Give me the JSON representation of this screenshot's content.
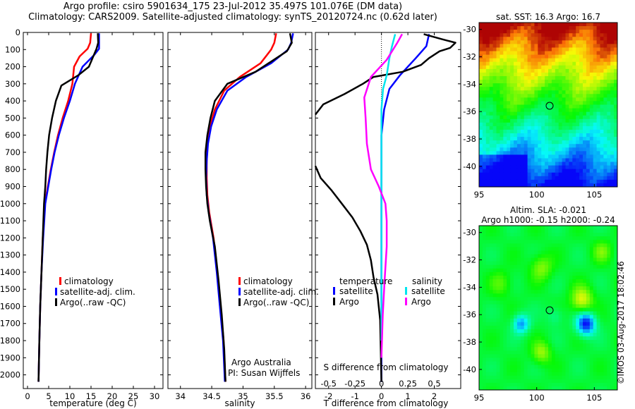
{
  "header": {
    "title_line1": "Argo profile: csiro 5901634_175 23-Jul-2012 35.497S 101.076E (DM data)",
    "title_line2": "Climatology: CARS2009. Satellite-adjusted climatology: synTS_20120724.nc (0.62d later)"
  },
  "colors": {
    "climatology": "#ff0000",
    "satellite": "#0000ff",
    "argo": "#000000",
    "satellite_salinity": "#00e5ee",
    "argo_salinity": "#ff00ff"
  },
  "labels": {
    "temp_xlabel": "temperature (deg C)",
    "sal_xlabel": "salinity",
    "diff_xlabel_bottom": "T difference from climatology",
    "diff_xlabel_top": "S difference from climatology",
    "legend_climatology": "climatology",
    "legend_satellite_adj": "satellite-adj. clim.",
    "legend_argo_raw": "Argo(..raw -QC)",
    "diff_legend_temperature": "temperature",
    "diff_legend_salinity": "salinity",
    "diff_legend_satellite": "satellite",
    "diff_legend_argo": "Argo",
    "credit_line1": "Argo Australia",
    "credit_line2": "PI: Susan Wijffels",
    "sst_title": "sat. SST: 16.3 Argo: 16.7",
    "sla_title_line1": "Altim. SLA: -0.021",
    "sla_title_line2": "Argo h1000: -0.15 h2000: -0.24",
    "stamp": "©IMOS 03-Aug-2017 18:02:46"
  },
  "chart_data": [
    {
      "type": "line",
      "name": "temperature",
      "xlabel": "temperature (deg C)",
      "ylabel": "",
      "xlim": [
        -1,
        32
      ],
      "ylim": [
        2080,
        0
      ],
      "y_inverted": true,
      "xticks": [
        0,
        5,
        10,
        15,
        20,
        25,
        30
      ],
      "yticks": [
        0,
        100,
        200,
        300,
        400,
        500,
        600,
        700,
        800,
        900,
        1000,
        1100,
        1200,
        1300,
        1400,
        1500,
        1600,
        1700,
        1800,
        1900,
        2000
      ],
      "legend": "lower-right",
      "series": [
        {
          "name": "climatology",
          "color": "climatology",
          "x": [
            15.0,
            14.8,
            14.2,
            12.3,
            11.0,
            10.6,
            9.6,
            8.3,
            7.2,
            6.3,
            5.5,
            4.8,
            4.1,
            3.6,
            3.3,
            3.0,
            2.8,
            2.6
          ],
          "y": [
            5,
            60,
            95,
            140,
            200,
            300,
            400,
            500,
            600,
            700,
            800,
            900,
            1000,
            1200,
            1400,
            1600,
            1800,
            2040
          ]
        },
        {
          "name": "satellite-adj. clim.",
          "color": "satellite",
          "x": [
            16.9,
            16.9,
            16.9,
            15.8,
            13.0,
            11.2,
            10.0,
            8.6,
            7.4,
            6.4,
            5.6,
            4.9,
            4.2,
            3.7,
            3.3,
            3.0,
            2.8,
            2.6
          ],
          "y": [
            5,
            60,
            95,
            130,
            200,
            300,
            400,
            500,
            600,
            700,
            800,
            900,
            1000,
            1200,
            1400,
            1600,
            1800,
            2040
          ]
        },
        {
          "name": "Argo(..raw -QC)",
          "color": "argo",
          "x": [
            16.6,
            16.7,
            16.3,
            14.5,
            12.0,
            8.0,
            6.7,
            5.8,
            5.1,
            4.7,
            4.4,
            4.2,
            3.9,
            3.6,
            3.3,
            3.0,
            2.8,
            2.6
          ],
          "y": [
            5,
            60,
            95,
            200,
            250,
            310,
            400,
            500,
            600,
            700,
            800,
            900,
            1000,
            1200,
            1400,
            1600,
            1800,
            2040
          ]
        }
      ]
    },
    {
      "type": "line",
      "name": "salinity",
      "xlabel": "salinity",
      "ylabel": "",
      "xlim": [
        33.8,
        36.1
      ],
      "ylim": [
        2080,
        0
      ],
      "y_inverted": true,
      "xticks": [
        34,
        34.5,
        35,
        35.5,
        36
      ],
      "legend": "lower-right",
      "series": [
        {
          "name": "climatology",
          "color": "climatology",
          "x": [
            35.53,
            35.5,
            35.45,
            35.28,
            34.95,
            34.7,
            34.55,
            34.47,
            34.43,
            34.42,
            34.42,
            34.43,
            34.46,
            34.53,
            34.59,
            34.64,
            34.69,
            34.72
          ],
          "y": [
            5,
            60,
            100,
            180,
            260,
            340,
            450,
            550,
            650,
            750,
            850,
            950,
            1050,
            1200,
            1400,
            1600,
            1800,
            2040
          ]
        },
        {
          "name": "satellite-adj. clim.",
          "color": "satellite",
          "x": [
            35.8,
            35.77,
            35.72,
            35.45,
            35.05,
            34.75,
            34.58,
            34.49,
            34.44,
            34.42,
            34.41,
            34.42,
            34.45,
            34.52,
            34.58,
            34.63,
            34.68,
            34.71
          ],
          "y": [
            5,
            60,
            100,
            180,
            260,
            340,
            450,
            550,
            650,
            750,
            850,
            950,
            1050,
            1200,
            1400,
            1600,
            1800,
            2040
          ]
        },
        {
          "name": "Argo(..raw -QC)",
          "color": "argo",
          "x": [
            35.75,
            35.78,
            35.7,
            35.2,
            34.75,
            34.55,
            34.48,
            34.43,
            34.4,
            34.4,
            34.41,
            34.43,
            34.47,
            34.55,
            34.61,
            34.66,
            34.7,
            34.72
          ],
          "y": [
            5,
            60,
            110,
            230,
            300,
            400,
            500,
            600,
            700,
            800,
            900,
            1000,
            1100,
            1250,
            1450,
            1650,
            1850,
            2040
          ]
        }
      ]
    },
    {
      "type": "line",
      "name": "difference from climatology",
      "xlabel": "T difference from climatology",
      "xlabel_top": "S difference from climatology",
      "xlim": [
        -2.5,
        3.0
      ],
      "ylim": [
        2080,
        0
      ],
      "y_inverted": true,
      "xticks": [
        -2,
        -1,
        0,
        1,
        2
      ],
      "xticks_top": [
        -0.5,
        -0.25,
        0,
        0.25,
        0.5
      ],
      "zero_line": "dotted",
      "legend": "middle",
      "series": [
        {
          "name": "temperature satellite",
          "color": "satellite",
          "x": [
            1.8,
            1.7,
            1.3,
            0.7,
            0.3,
            0.1,
            0.0,
            0.0,
            0.0,
            0.0,
            0.0,
            0.0,
            0.0,
            0.0
          ],
          "y": [
            10,
            80,
            150,
            250,
            330,
            450,
            600,
            800,
            1000,
            1200,
            1400,
            1600,
            1800,
            2040
          ]
        },
        {
          "name": "temperature Argo",
          "color": "argo",
          "x": [
            1.6,
            2.3,
            2.8,
            2.6,
            2.2,
            1.8,
            1.5,
            0.8,
            -0.3,
            -0.7,
            -1.4,
            -2.2,
            -2.5,
            null,
            -2.5,
            -2.3,
            -1.9,
            -1.5,
            -1.1,
            -0.8,
            -0.55,
            -0.4,
            -0.3,
            -0.15,
            -0.05,
            0.0
          ],
          "y": [
            10,
            40,
            60,
            90,
            110,
            150,
            190,
            230,
            260,
            300,
            360,
            420,
            480,
            null,
            780,
            850,
            920,
            1000,
            1080,
            1160,
            1240,
            1330,
            1430,
            1530,
            1680,
            2040
          ]
        },
        {
          "name": "salinity satellite",
          "color": "satellite_salinity",
          "x": [
            0.52,
            0.4,
            0.3,
            0.2,
            0.06,
            0.0,
            0.0,
            0.0,
            0.0,
            0.0,
            0.0,
            0.0,
            0.0
          ],
          "y": [
            10,
            80,
            150,
            250,
            330,
            450,
            600,
            800,
            1000,
            1200,
            1400,
            1600,
            1800
          ]
        },
        {
          "name": "salinity Argo",
          "color": "argo_salinity",
          "x": [
            0.78,
            0.6,
            0.2,
            -0.4,
            -0.65,
            -0.6,
            -0.55,
            -0.4,
            -0.1,
            0.15,
            0.2,
            0.2,
            0.12,
            0.05,
            0.0
          ],
          "y": [
            10,
            60,
            160,
            260,
            380,
            500,
            650,
            800,
            900,
            1000,
            1100,
            1250,
            1450,
            1650,
            1900
          ]
        }
      ]
    },
    {
      "type": "heatmap",
      "name": "SST map",
      "title": "sat. SST: 16.3 Argo: 16.7",
      "xlim": [
        95,
        107
      ],
      "ylim": [
        -41.5,
        -29.5
      ],
      "xticks": [
        95,
        100,
        105
      ],
      "yticks": [
        -30,
        -32,
        -34,
        -36,
        -38,
        -40
      ],
      "marker": {
        "lon": 101.076,
        "lat": -35.497
      },
      "sat_sst": 16.3,
      "argo_sst": 16.7
    },
    {
      "type": "heatmap",
      "name": "SLA map",
      "title": "Altim. SLA: -0.021",
      "subtitle": "Argo h1000: -0.15 h2000: -0.24",
      "xlim": [
        95,
        107
      ],
      "ylim": [
        -41.5,
        -29.5
      ],
      "xticks": [
        95,
        100,
        105
      ],
      "yticks": [
        -30,
        -32,
        -34,
        -36,
        -38,
        -40
      ],
      "marker": {
        "lon": 101.076,
        "lat": -35.497
      },
      "sla": -0.021,
      "argo_h1000": -0.15,
      "argo_h2000": -0.24
    }
  ]
}
